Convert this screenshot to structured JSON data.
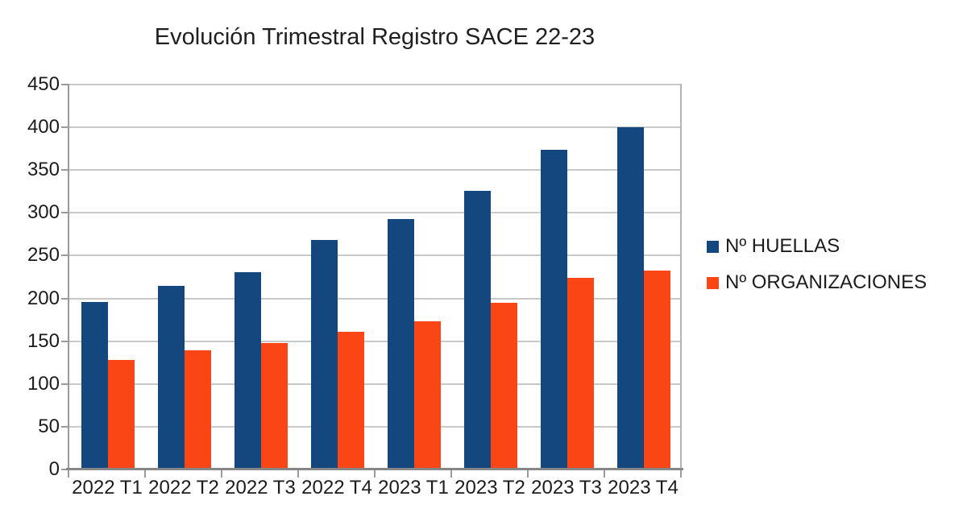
{
  "chart_data": {
    "type": "bar",
    "title": "Evolución Trimestral Registro SACE 22-23",
    "categories": [
      "2022 T1",
      "2022 T2",
      "2022 T3",
      "2022 T4",
      "2023 T1",
      "2023 T2",
      "2023 T3",
      "2023 T4"
    ],
    "series": [
      {
        "name": "Nº HUELLAS",
        "color": "#13477d",
        "values": [
          196,
          215,
          231,
          268,
          293,
          326,
          374,
          400
        ]
      },
      {
        "name": "Nº ORGANIZACIONES",
        "color": "#fa4515",
        "values": [
          128,
          139,
          148,
          161,
          173,
          195,
          224,
          233
        ]
      }
    ],
    "xlabel": "",
    "ylabel": "",
    "ylim": [
      0,
      450
    ],
    "ytick_step": 50,
    "ytick_labels": [
      "0",
      "50",
      "100",
      "150",
      "200",
      "250",
      "300",
      "350",
      "400",
      "450"
    ],
    "grid": true,
    "legend_position": "right",
    "colors": {
      "background": "#ffffff",
      "gridline": "#c9c9c9",
      "axis": "#878787",
      "text": "#1c1c1c"
    }
  }
}
